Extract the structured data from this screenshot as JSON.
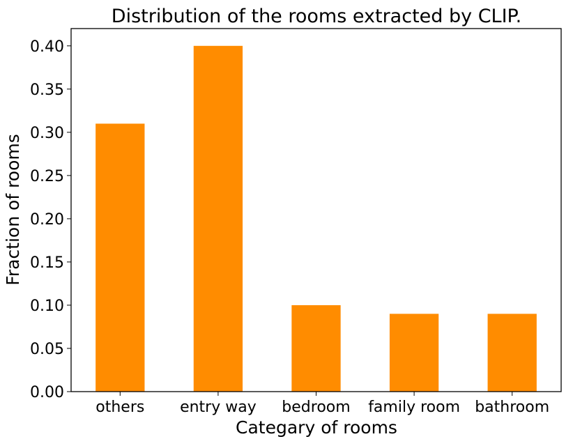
{
  "chart_data": {
    "type": "bar",
    "title": "Distribution of the rooms extracted by CLIP.",
    "xlabel": "Categary of rooms",
    "ylabel": "Fraction of rooms",
    "categories": [
      "others",
      "entry way",
      "bedroom",
      "family room",
      "bathroom"
    ],
    "values": [
      0.31,
      0.4,
      0.1,
      0.09,
      0.09
    ],
    "ylim": [
      0,
      0.42
    ],
    "yticks": [
      "0.00",
      "0.05",
      "0.10",
      "0.15",
      "0.20",
      "0.25",
      "0.30",
      "0.35",
      "0.40"
    ],
    "bar_color": "#ff8c00",
    "grid": false,
    "legend": "none"
  }
}
